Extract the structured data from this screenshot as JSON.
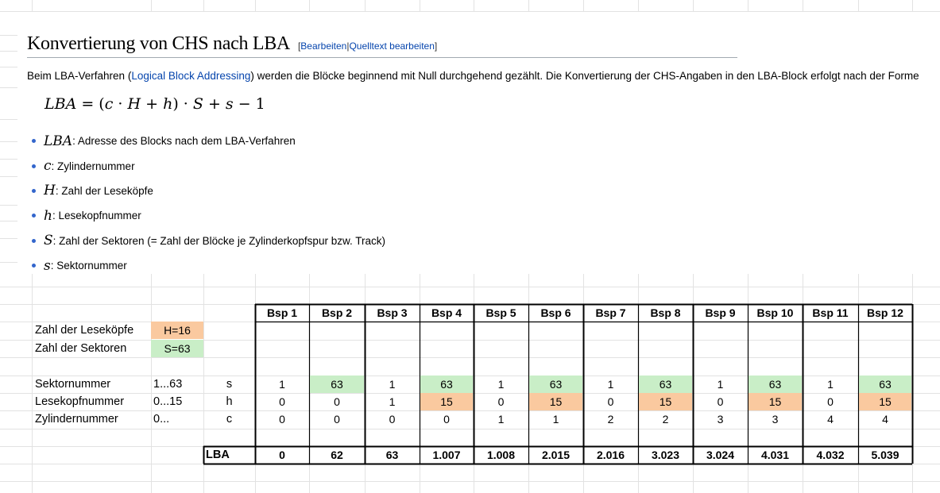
{
  "heading": {
    "title": "Konvertierung von CHS nach LBA",
    "edit_open": "[",
    "edit_link": "Bearbeiten",
    "edit_sep": "|",
    "source_link": "Quelltext bearbeiten",
    "edit_close": "]"
  },
  "paragraph": {
    "before": "Beim LBA-Verfahren (",
    "link": "Logical Block Addressing",
    "after": ") werden die Blöcke beginnend mit Null durchgehend gezählt. Die Konvertierung der CHS-Angaben in den LBA-Block erfolgt nach der Forme"
  },
  "formula": {
    "lhs": "LBA",
    "equals": " = (",
    "c": "c",
    "dot1": " · ",
    "H": "H",
    "plus": " + ",
    "h": "h",
    "close": ") · ",
    "S": "S",
    "plus2": " + ",
    "s": "s",
    "minus": " − 1"
  },
  "definitions": [
    {
      "symbol": "LBA",
      "text": ": Adresse des Blocks nach dem LBA-Verfahren"
    },
    {
      "symbol": "c",
      "text": ": Zylindernummer"
    },
    {
      "symbol": "H",
      "text": ": Zahl der Leseköpfe"
    },
    {
      "symbol": "h",
      "text": ": Lesekopfnummer"
    },
    {
      "symbol": "S",
      "text": ": Zahl der Sektoren (= Zahl der Blöcke je Zylinderkopfspur bzw. Track)"
    },
    {
      "symbol": "s",
      "text": ": Sektornummer"
    }
  ],
  "sheet": {
    "param_heads": {
      "label": "Zahl der Leseköpfe",
      "value": "H=16"
    },
    "param_sectors": {
      "label": "Zahl der Sektoren",
      "value": "S=63"
    },
    "rows": [
      {
        "label": "Sektornummer",
        "range": "1...63",
        "var": "s"
      },
      {
        "label": "Lesekopfnummer",
        "range": "0...15",
        "var": "h"
      },
      {
        "label": "Zylindernummer",
        "range": "0...",
        "var": "c"
      }
    ],
    "lba_label": "LBA",
    "columns": [
      {
        "head": "Bsp 1",
        "s": "1",
        "h": "0",
        "c": "0",
        "lba": "0"
      },
      {
        "head": "Bsp 2",
        "s": "63",
        "h": "0",
        "c": "0",
        "lba": "62"
      },
      {
        "head": "Bsp 3",
        "s": "1",
        "h": "1",
        "c": "0",
        "lba": "63"
      },
      {
        "head": "Bsp 4",
        "s": "63",
        "h": "15",
        "c": "0",
        "lba": "1.007"
      },
      {
        "head": "Bsp 5",
        "s": "1",
        "h": "0",
        "c": "1",
        "lba": "1.008"
      },
      {
        "head": "Bsp 6",
        "s": "63",
        "h": "15",
        "c": "1",
        "lba": "2.015"
      },
      {
        "head": "Bsp 7",
        "s": "1",
        "h": "0",
        "c": "2",
        "lba": "2.016"
      },
      {
        "head": "Bsp 8",
        "s": "63",
        "h": "15",
        "c": "2",
        "lba": "3.023"
      },
      {
        "head": "Bsp 9",
        "s": "1",
        "h": "0",
        "c": "3",
        "lba": "3.024"
      },
      {
        "head": "Bsp 10",
        "s": "63",
        "h": "15",
        "c": "3",
        "lba": "4.031"
      },
      {
        "head": "Bsp 11",
        "s": "1",
        "h": "0",
        "c": "4",
        "lba": "4.032"
      },
      {
        "head": "Bsp 12",
        "s": "63",
        "h": "15",
        "c": "4",
        "lba": "5.039"
      }
    ]
  },
  "colors": {
    "orange": "#fac99f",
    "green": "#c9eec7",
    "link": "#0645ad",
    "bullet": "#3366cc"
  }
}
